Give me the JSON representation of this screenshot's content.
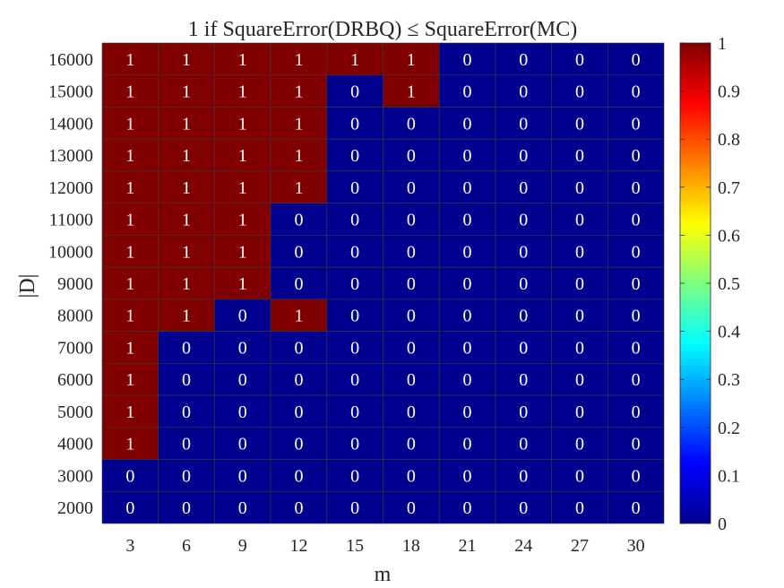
{
  "chart_data": {
    "type": "heatmap",
    "title": "1 if SquareError(DRBQ) ≤ SquareError(MC)",
    "xlabel": "m",
    "ylabel": "|D|",
    "x": [
      "3",
      "6",
      "9",
      "12",
      "15",
      "18",
      "21",
      "24",
      "27",
      "30"
    ],
    "y": [
      "16000",
      "15000",
      "14000",
      "13000",
      "12000",
      "11000",
      "10000",
      "9000",
      "8000",
      "7000",
      "6000",
      "5000",
      "4000",
      "3000",
      "2000"
    ],
    "values": [
      [
        1,
        1,
        1,
        1,
        1,
        1,
        0,
        0,
        0,
        0
      ],
      [
        1,
        1,
        1,
        1,
        0,
        1,
        0,
        0,
        0,
        0
      ],
      [
        1,
        1,
        1,
        1,
        0,
        0,
        0,
        0,
        0,
        0
      ],
      [
        1,
        1,
        1,
        1,
        0,
        0,
        0,
        0,
        0,
        0
      ],
      [
        1,
        1,
        1,
        1,
        0,
        0,
        0,
        0,
        0,
        0
      ],
      [
        1,
        1,
        1,
        0,
        0,
        0,
        0,
        0,
        0,
        0
      ],
      [
        1,
        1,
        1,
        0,
        0,
        0,
        0,
        0,
        0,
        0
      ],
      [
        1,
        1,
        1,
        0,
        0,
        0,
        0,
        0,
        0,
        0
      ],
      [
        1,
        1,
        0,
        1,
        0,
        0,
        0,
        0,
        0,
        0
      ],
      [
        1,
        0,
        0,
        0,
        0,
        0,
        0,
        0,
        0,
        0
      ],
      [
        1,
        0,
        0,
        0,
        0,
        0,
        0,
        0,
        0,
        0
      ],
      [
        1,
        0,
        0,
        0,
        0,
        0,
        0,
        0,
        0,
        0
      ],
      [
        1,
        0,
        0,
        0,
        0,
        0,
        0,
        0,
        0,
        0
      ],
      [
        0,
        0,
        0,
        0,
        0,
        0,
        0,
        0,
        0,
        0
      ],
      [
        0,
        0,
        0,
        0,
        0,
        0,
        0,
        0,
        0,
        0
      ]
    ],
    "colorbar": {
      "colormap": "jet",
      "range": [
        0,
        1
      ],
      "ticks": [
        "0",
        "0.1",
        "0.2",
        "0.3",
        "0.4",
        "0.5",
        "0.6",
        "0.7",
        "0.8",
        "0.9",
        "1"
      ]
    },
    "colors": {
      "high": "#800000",
      "low": "#00008f",
      "label": "#ffffff"
    }
  }
}
